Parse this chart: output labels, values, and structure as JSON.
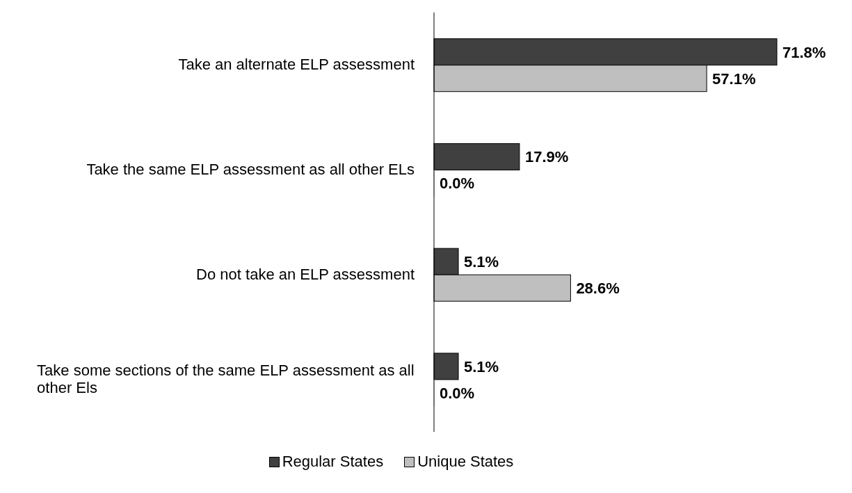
{
  "chart_data": {
    "type": "bar",
    "orientation": "horizontal",
    "categories": [
      "Take an alternate ELP assessment",
      "Take the same ELP assessment as all other ELs",
      "Do not take an ELP assessment",
      "Take some sections of the same ELP assessment as all other Els"
    ],
    "series": [
      {
        "name": "Regular States",
        "color": "#404040",
        "values": [
          71.8,
          17.9,
          5.1,
          5.1
        ],
        "value_labels": [
          "71.8%",
          "17.9%",
          "5.1%",
          "5.1%"
        ]
      },
      {
        "name": "Unique States",
        "color": "#bfbfbf",
        "values": [
          57.1,
          0.0,
          28.6,
          0.0
        ],
        "value_labels": [
          "57.1%",
          "0.0%",
          "28.6%",
          "0.0%"
        ]
      }
    ],
    "legend": "bottom"
  }
}
